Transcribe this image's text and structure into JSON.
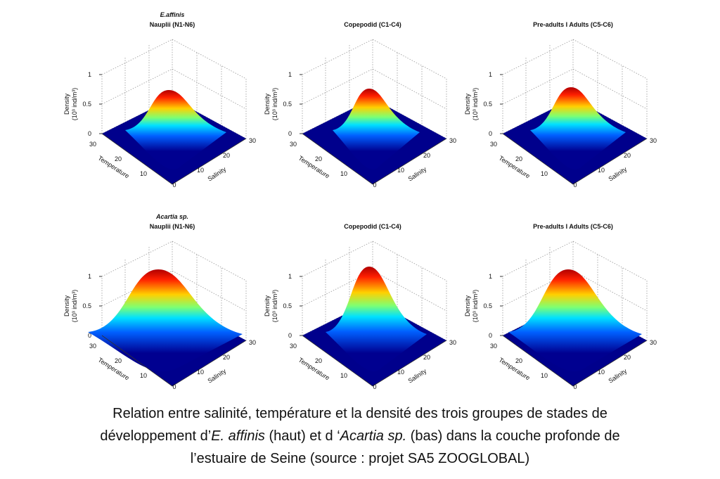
{
  "panels": [
    {
      "title": [
        "E.affinis",
        "Nauplii (N1-N6)"
      ]
    },
    {
      "title": [
        "Copepodid (C1-C4)"
      ]
    },
    {
      "title": [
        "Pre-adults I Adults (C5-C6)"
      ]
    },
    {
      "title": [
        "Acartia sp.",
        "Nauplii (N1-N6)"
      ]
    },
    {
      "title": [
        "Copepodid (C1-C4)"
      ]
    },
    {
      "title": [
        "Pre-adults I Adults (C5-C6)"
      ]
    }
  ],
  "axes": {
    "z_label": "Density",
    "z_unit": "(10³ ind/m³)",
    "z_ticks": [
      "1",
      "0.5",
      "0"
    ],
    "x_label": "Temperature",
    "x_ticks": [
      "30",
      "20",
      "10"
    ],
    "y_label": "Salinity",
    "y_ticks": [
      "0",
      "10",
      "20",
      "30"
    ]
  },
  "caption": [
    [
      "Relation entre salinité, température et la densité des trois groupes de stades de"
    ],
    [
      "développement d’",
      "E. affinis",
      " (haut) et d ‘",
      "Acartia sp.",
      " (bas) dans la couche profonde de"
    ],
    [
      "l’estuaire de Seine (source : projet SA5 ZOOGLOBAL)"
    ]
  ]
}
